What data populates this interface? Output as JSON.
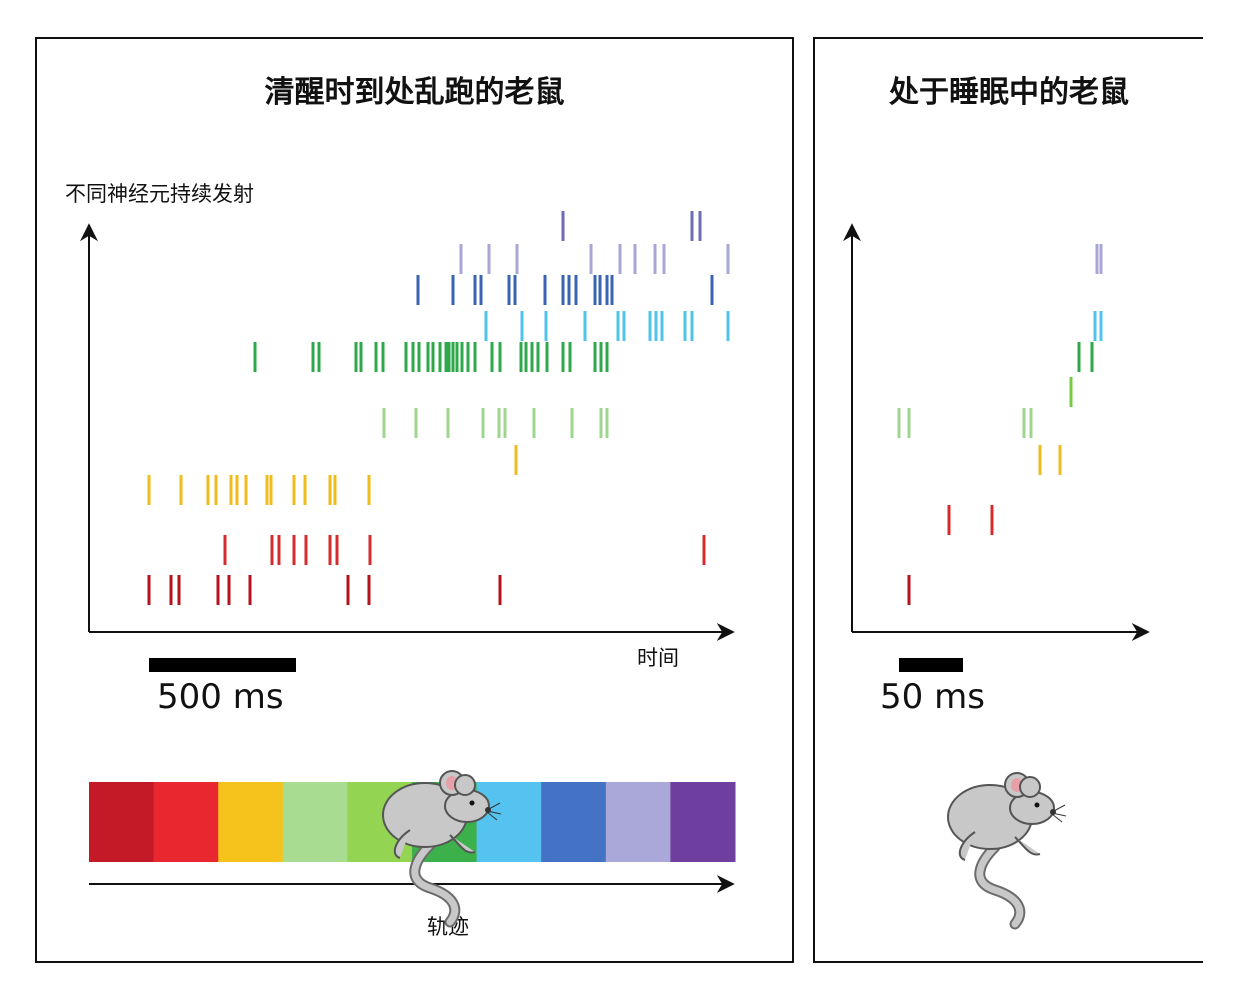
{
  "left_panel": {
    "title": "清醒时到处乱跑的老鼠",
    "y_axis_label": "不同神经元持续发射",
    "x_axis_label": "时间",
    "scale_label": "500 ms",
    "track_label": "轨迹",
    "track_colors": [
      "#c41a27",
      "#e8282e",
      "#f6c31c",
      "#a8dc91",
      "#93d452",
      "#3cb04a",
      "#55c3ef",
      "#4472c4",
      "#aaa8d8",
      "#6f3f9f"
    ]
  },
  "right_panel": {
    "title": "处于睡眠中的老鼠",
    "scale_label": "50 ms"
  },
  "colors": {
    "dark_red": "#b5121b",
    "red": "#d52b2e",
    "yellow": "#f2bb1d",
    "light_green": "#9fd68f",
    "green": "#2ea84a",
    "light_green2": "#7ac943",
    "cyan": "#4fc3ea",
    "blue": "#3a63b2",
    "lavender": "#a7a6d6",
    "violet": "#6c6cb8"
  }
}
